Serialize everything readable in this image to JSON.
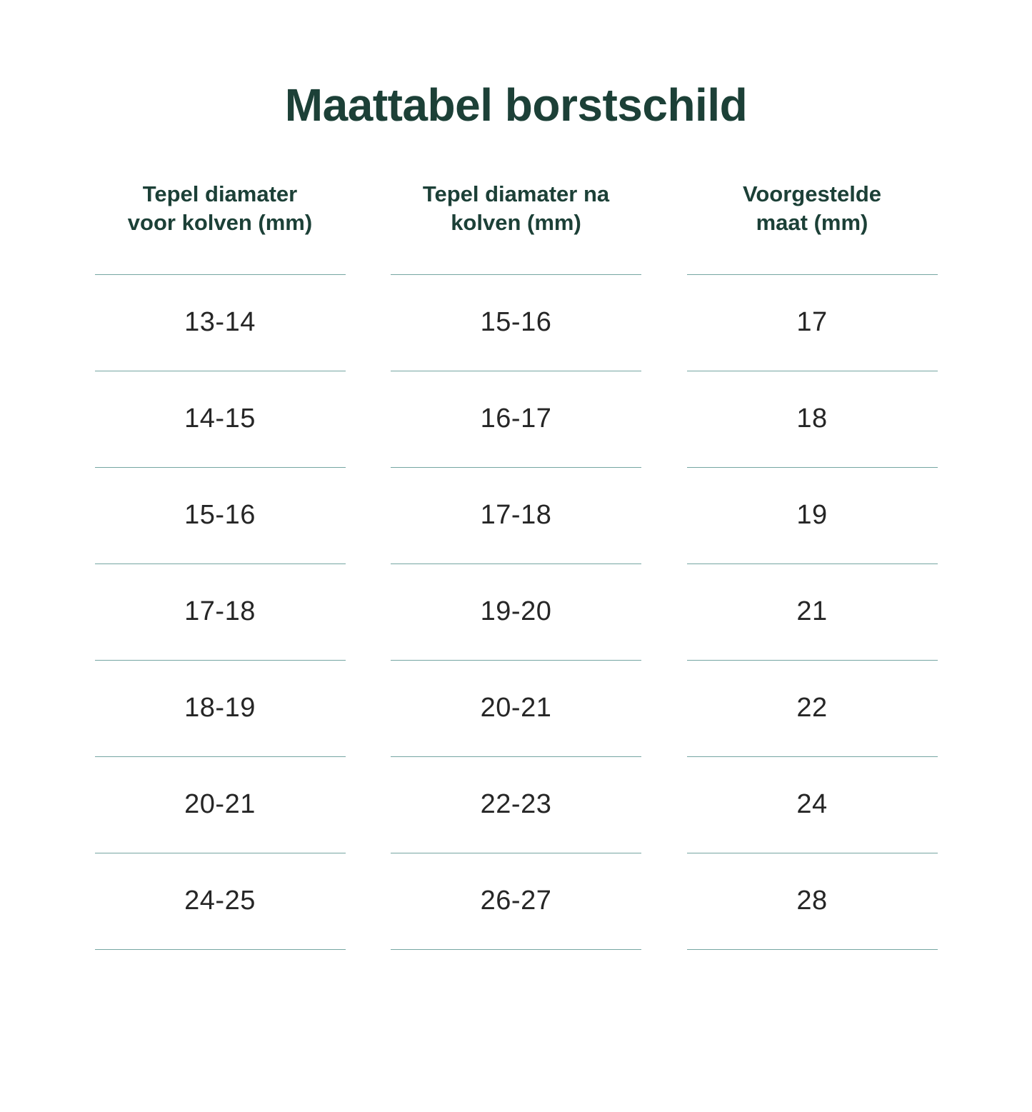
{
  "colors": {
    "title": "#1c4037",
    "heading": "#1c4037",
    "cell_text": "#262626",
    "divider": "#75a6a2",
    "background": "#ffffff"
  },
  "chart_data": {
    "type": "table",
    "title": "Maattabel borstschild",
    "columns": [
      {
        "header": "Tepel diamater voor kolven (mm)",
        "header_lines": [
          "Tepel diamater",
          "voor kolven (mm)"
        ],
        "values": [
          "13-14",
          "14-15",
          "15-16",
          "17-18",
          "18-19",
          "20-21",
          "24-25"
        ]
      },
      {
        "header": "Tepel diamater na kolven (mm)",
        "header_lines": [
          "Tepel diamater na",
          "kolven (mm)"
        ],
        "values": [
          "15-16",
          "16-17",
          "17-18",
          "19-20",
          "20-21",
          "22-23",
          "26-27"
        ]
      },
      {
        "header": "Voorgestelde maat (mm)",
        "header_lines": [
          "Voorgestelde",
          "maat (mm)"
        ],
        "values": [
          "17",
          "18",
          "19",
          "21",
          "22",
          "24",
          "28"
        ]
      }
    ],
    "layout": {
      "columns_count": 3,
      "rows_count": 7,
      "grid": "horizontal dividers only"
    }
  }
}
